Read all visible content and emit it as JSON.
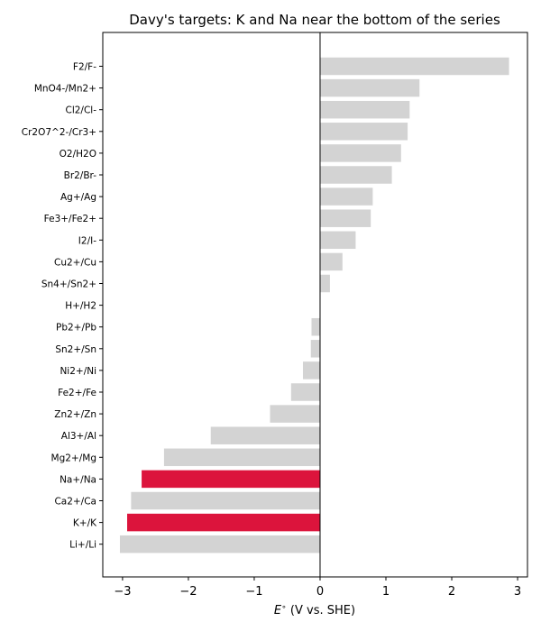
{
  "chart_data": {
    "type": "bar",
    "orientation": "horizontal",
    "title": "Davy's targets: K and Na near the bottom of the series",
    "xlabel_prefix": "E",
    "xlabel_sup": "∘",
    "xlabel_suffix": " (V vs. SHE)",
    "ylabel": "",
    "xlim": [
      -3.3,
      3.15
    ],
    "xticks": [
      -3,
      -2,
      -1,
      0,
      1,
      2,
      3
    ],
    "xtick_labels": [
      "−3",
      "−2",
      "−1",
      "0",
      "1",
      "2",
      "3"
    ],
    "grid": false,
    "colors": {
      "default": "#d3d3d3",
      "highlight": "#dc143c",
      "axis": "#000000"
    },
    "categories": [
      "F2/F-",
      "MnO4-/Mn2+",
      "Cl2/Cl-",
      "Cr2O7^2-/Cr3+",
      "O2/H2O",
      "Br2/Br-",
      "Ag+/Ag",
      "Fe3+/Fe2+",
      "I2/I-",
      "Cu2+/Cu",
      "Sn4+/Sn2+",
      "H+/H2",
      "Pb2+/Pb",
      "Sn2+/Sn",
      "Ni2+/Ni",
      "Fe2+/Fe",
      "Zn2+/Zn",
      "Al3+/Al",
      "Mg2+/Mg",
      "Na+/Na",
      "Ca2+/Ca",
      "K+/K",
      "Li+/Li"
    ],
    "values": [
      2.87,
      1.51,
      1.36,
      1.33,
      1.23,
      1.09,
      0.8,
      0.77,
      0.54,
      0.34,
      0.15,
      0.0,
      -0.13,
      -0.14,
      -0.26,
      -0.44,
      -0.76,
      -1.66,
      -2.37,
      -2.71,
      -2.87,
      -2.93,
      -3.04
    ],
    "highlighted": [
      "Na+/Na",
      "K+/K"
    ]
  }
}
